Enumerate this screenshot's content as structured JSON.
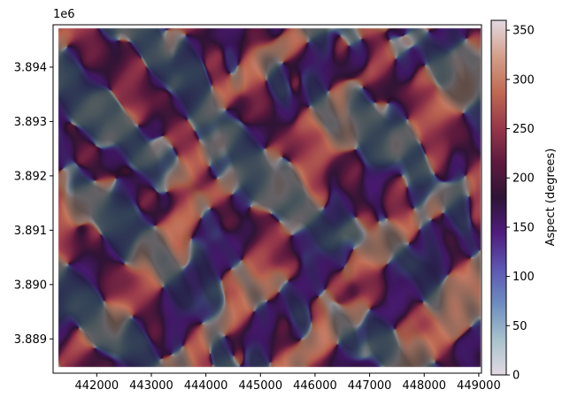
{
  "chart_data": {
    "type": "heatmap",
    "title": "",
    "xlabel": "",
    "ylabel": "",
    "x_offset_label": "",
    "y_offset_label": "1e6",
    "xlim": [
      441200,
      449050
    ],
    "ylim": [
      3.88837,
      3.89478
    ],
    "x_ticks": [
      {
        "value": 442000,
        "label": "442000"
      },
      {
        "value": 443000,
        "label": "443000"
      },
      {
        "value": 444000,
        "label": "444000"
      },
      {
        "value": 445000,
        "label": "445000"
      },
      {
        "value": 446000,
        "label": "446000"
      },
      {
        "value": 447000,
        "label": "447000"
      },
      {
        "value": 448000,
        "label": "448000"
      },
      {
        "value": 449000,
        "label": "449000"
      }
    ],
    "y_ticks": [
      {
        "value": 3.889,
        "label": "3.889"
      },
      {
        "value": 3.89,
        "label": "3.890"
      },
      {
        "value": 3.891,
        "label": "3.891"
      },
      {
        "value": 3.892,
        "label": "3.892"
      },
      {
        "value": 3.893,
        "label": "3.893"
      },
      {
        "value": 3.894,
        "label": "3.894"
      }
    ],
    "colorbar": {
      "label": "Aspect (degrees)",
      "range": [
        0,
        360
      ],
      "colormap": "twilight",
      "colormap_stops": [
        "#e2d9e2",
        "#a7c2cc",
        "#6e8dc0",
        "#5d56b1",
        "#4f1c7c",
        "#2f1436",
        "#5e1a3e",
        "#99384b",
        "#c06b53",
        "#d4a08c",
        "#e2d9e2"
      ],
      "ticks": [
        {
          "value": 0,
          "label": "0"
        },
        {
          "value": 50,
          "label": "50"
        },
        {
          "value": 100,
          "label": "100"
        },
        {
          "value": 150,
          "label": "150"
        },
        {
          "value": 200,
          "label": "200"
        },
        {
          "value": 250,
          "label": "250"
        },
        {
          "value": 300,
          "label": "300"
        },
        {
          "value": 350,
          "label": "350"
        }
      ]
    },
    "grid": false
  }
}
